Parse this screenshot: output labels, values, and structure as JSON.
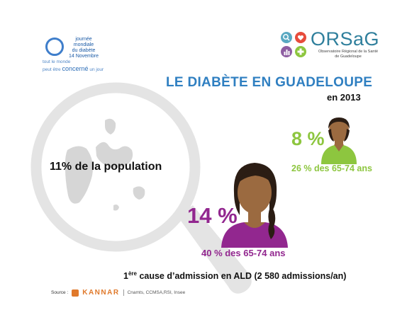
{
  "wdd": {
    "line1": "journée mondiale",
    "line2": "du diabète",
    "line3": "14 Novembre",
    "tagline_1": "tout le monde",
    "tagline_2": "peut être",
    "tagline_3": "concerné",
    "tagline_4": "un jour"
  },
  "orsag": {
    "name": "ORSaG",
    "subtitle_1": "Observatoire Régional de la Santé",
    "subtitle_2": "de Guadeloupe"
  },
  "title": "LE DIABÈTE EN GUADELOUPE",
  "year": "en 2013",
  "population_stat": "11%  de la population",
  "men": {
    "percent": "8 %",
    "detail": "26 % des 65-74 ans"
  },
  "women": {
    "percent": "14 %",
    "detail": "40 % des 65-74 ans"
  },
  "cause": {
    "rank": "1",
    "rank_suffix": "ère",
    "text": " cause d’admission en ALD (2 580 admissions/an)"
  },
  "source": {
    "label": "Source :",
    "brand": "KANNAR",
    "others": "Cnamts, CCMSA,RSI, Insee"
  },
  "colors": {
    "title_blue": "#2f7fc1",
    "green": "#8dc63f",
    "purple": "#92278f",
    "magnifier_grey": "#e4e4e4"
  }
}
